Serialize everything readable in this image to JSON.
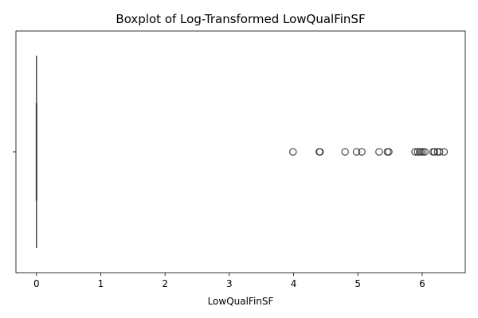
{
  "chart_data": {
    "type": "boxplot",
    "orientation": "horizontal",
    "title": "Boxplot of Log-Transformed LowQualFinSF",
    "xlabel": "LowQualFinSF",
    "ylabel": "",
    "xlim": [
      -0.32,
      6.67
    ],
    "xticks": [
      0,
      1,
      2,
      3,
      4,
      5,
      6
    ],
    "yticks": [
      ""
    ],
    "box": {
      "whisker_low": 0,
      "q1": 0,
      "median": 0,
      "q3": 0,
      "whisker_high": 0
    },
    "outliers": [
      3.99,
      4.4,
      4.41,
      4.8,
      4.98,
      5.06,
      5.33,
      5.46,
      5.48,
      5.89,
      5.93,
      5.96,
      5.98,
      6.01,
      6.04,
      6.17,
      6.19,
      6.24,
      6.27,
      6.34
    ],
    "grid": false,
    "color": "#3c3c3c"
  }
}
